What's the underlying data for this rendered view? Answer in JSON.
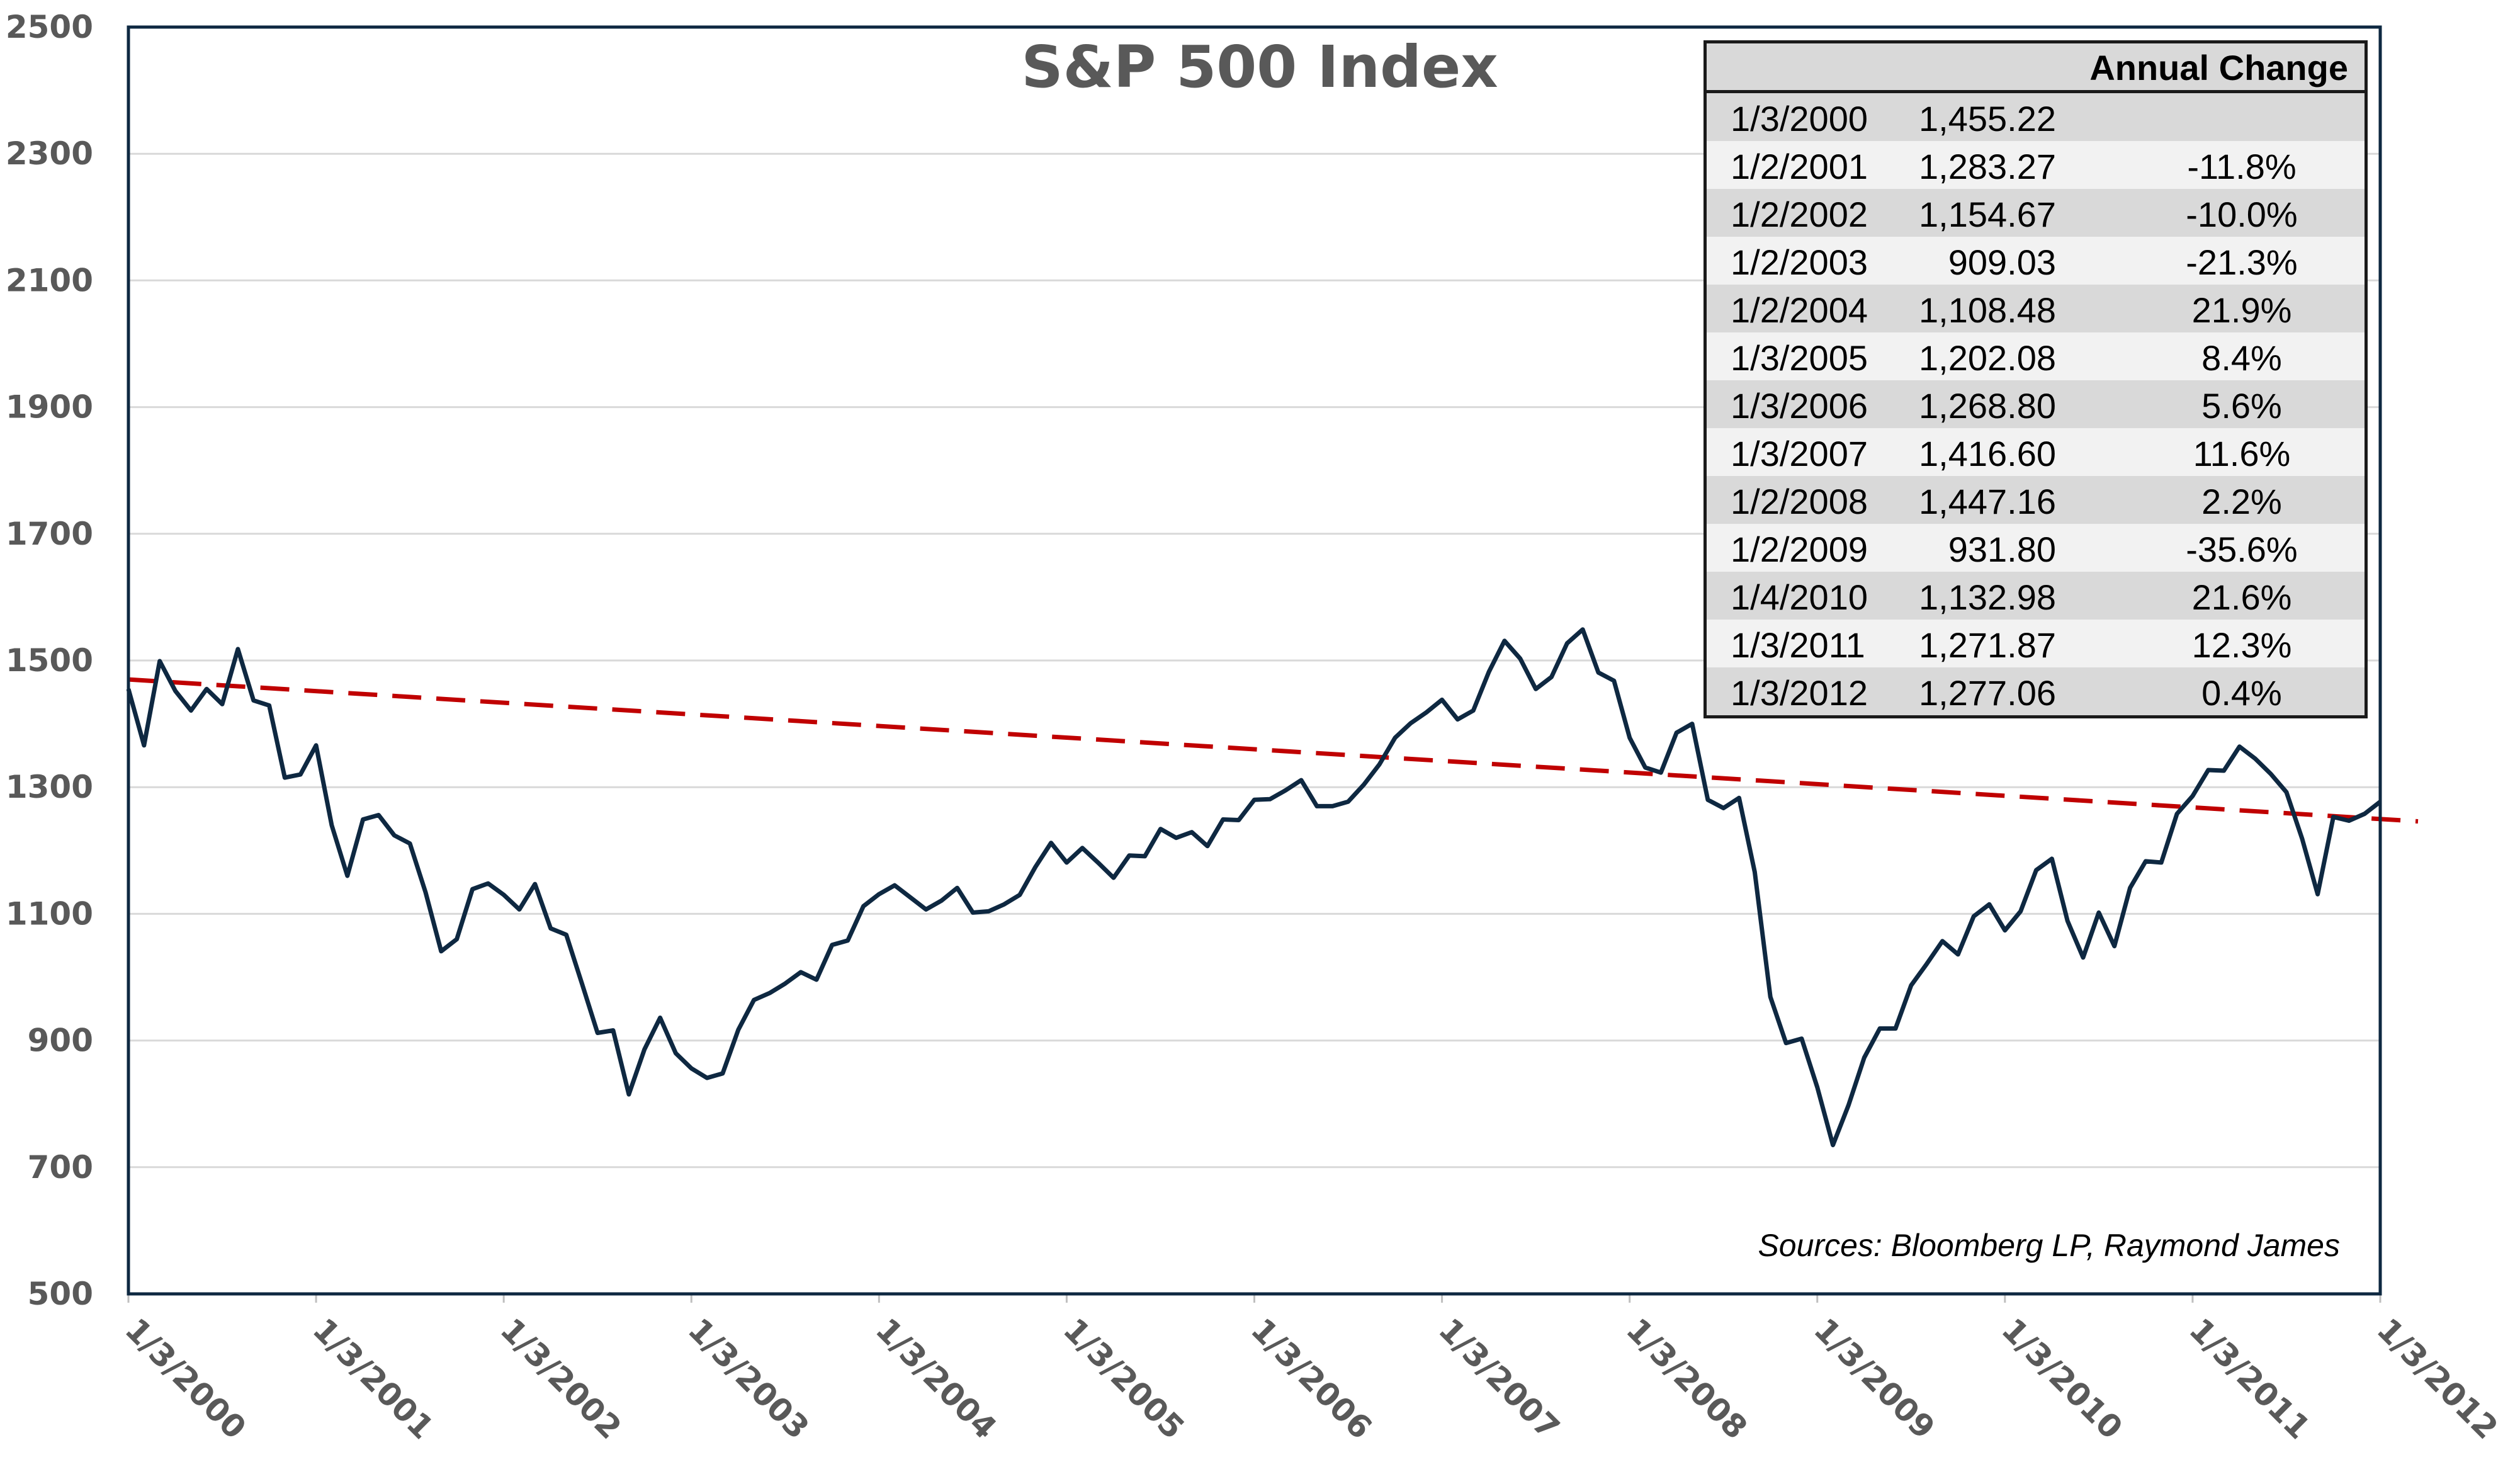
{
  "chart_data": {
    "type": "line",
    "title": "S&P 500 Index",
    "ylim": [
      500,
      2500
    ],
    "yticks": [
      "2500",
      "2300",
      "2100",
      "1900",
      "1700",
      "1500",
      "1300",
      "1100",
      "900",
      "700",
      "500"
    ],
    "xticks": [
      "1/3/2000",
      "1/3/2001",
      "1/3/2002",
      "1/3/2003",
      "1/3/2004",
      "1/3/2005",
      "1/3/2006",
      "1/3/2007",
      "1/3/2008",
      "1/3/2009",
      "1/3/2010",
      "1/3/2011",
      "1/3/2012"
    ],
    "grid": true,
    "series": [
      {
        "color": "#0e2841",
        "start_month": "2000-01",
        "frequency": "monthly",
        "values": [
          1455,
          1366,
          1499,
          1452,
          1421,
          1455,
          1431,
          1518,
          1437,
          1429,
          1315,
          1320,
          1366,
          1240,
          1160,
          1249,
          1256,
          1224,
          1211,
          1134,
          1041,
          1060,
          1139,
          1148,
          1130,
          1107,
          1147,
          1077,
          1067,
          990,
          912,
          916,
          815,
          886,
          936,
          880,
          856,
          841,
          848,
          917,
          964,
          975,
          990,
          1008,
          996,
          1051,
          1058,
          1112,
          1131,
          1145,
          1126,
          1107,
          1121,
          1141,
          1102,
          1104,
          1115,
          1130,
          1174,
          1212,
          1181,
          1204,
          1181,
          1157,
          1192,
          1191,
          1234,
          1220,
          1229,
          1207,
          1249,
          1248,
          1280,
          1281,
          1295,
          1311,
          1270,
          1270,
          1277,
          1304,
          1336,
          1378,
          1401,
          1418,
          1438,
          1407,
          1421,
          1482,
          1531,
          1503,
          1455,
          1474,
          1527,
          1549,
          1481,
          1468,
          1378,
          1331,
          1323,
          1386,
          1400,
          1280,
          1267,
          1283,
          1166,
          969,
          896,
          903,
          826,
          735,
          798,
          873,
          919,
          919,
          987,
          1021,
          1057,
          1036,
          1096,
          1115,
          1074,
          1104,
          1169,
          1187,
          1089,
          1031,
          1102,
          1049,
          1141,
          1183,
          1181,
          1258,
          1286,
          1327,
          1326,
          1364,
          1345,
          1321,
          1292,
          1219,
          1131,
          1253,
          1247,
          1258,
          1277
        ]
      },
      {
        "style": "dashed-trend",
        "color": "#c00000",
        "x": [
          "1/3/2000",
          "1/3/2012"
        ],
        "values": [
          1470,
          1250
        ]
      }
    ],
    "source": "Sources: Bloomberg LP, Raymond James"
  },
  "table": {
    "header": "Annual Change",
    "rows": [
      {
        "date": "1/3/2000",
        "value": "1,455.22",
        "change": ""
      },
      {
        "date": "1/2/2001",
        "value": "1,283.27",
        "change": "-11.8%"
      },
      {
        "date": "1/2/2002",
        "value": "1,154.67",
        "change": "-10.0%"
      },
      {
        "date": "1/2/2003",
        "value": "909.03",
        "change": "-21.3%"
      },
      {
        "date": "1/2/2004",
        "value": "1,108.48",
        "change": "21.9%"
      },
      {
        "date": "1/3/2005",
        "value": "1,202.08",
        "change": "8.4%"
      },
      {
        "date": "1/3/2006",
        "value": "1,268.80",
        "change": "5.6%"
      },
      {
        "date": "1/3/2007",
        "value": "1,416.60",
        "change": "11.6%"
      },
      {
        "date": "1/2/2008",
        "value": "1,447.16",
        "change": "2.2%"
      },
      {
        "date": "1/2/2009",
        "value": "931.80",
        "change": "-35.6%"
      },
      {
        "date": "1/4/2010",
        "value": "1,132.98",
        "change": "21.6%"
      },
      {
        "date": "1/3/2011",
        "value": "1,271.87",
        "change": "12.3%"
      },
      {
        "date": "1/3/2012",
        "value": "1,277.06",
        "change": "0.4%"
      }
    ]
  }
}
